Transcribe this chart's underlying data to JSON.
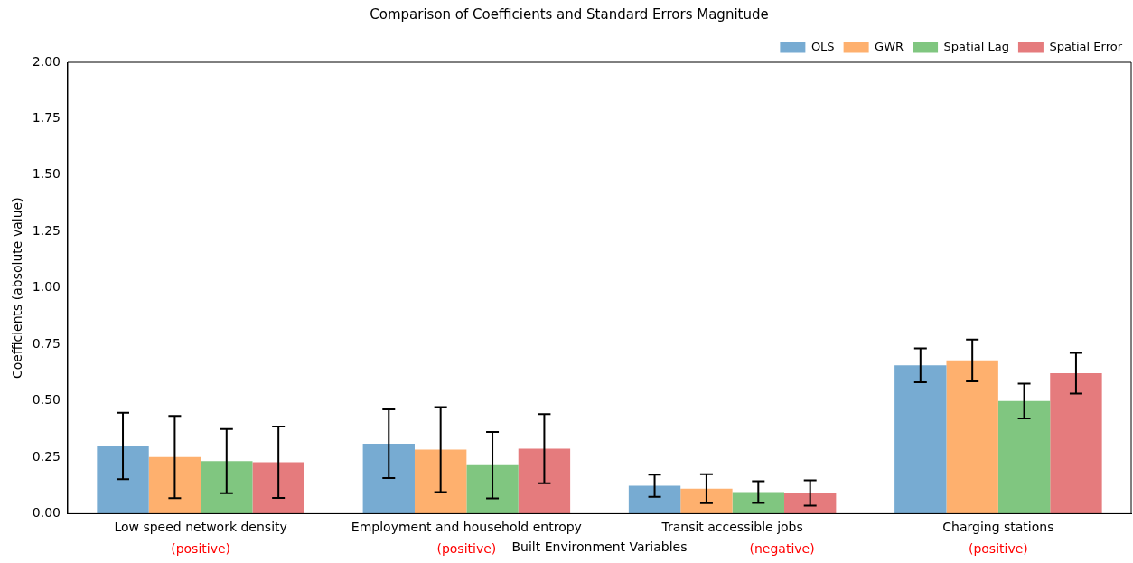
{
  "chart_data": {
    "type": "bar",
    "title": "Comparison of Coefficients and Standard Errors Magnitude",
    "xlabel": "Built Environment Variables",
    "ylabel": "Coefficients (absolute value)",
    "categories": [
      "Low speed network density",
      "Employment and household entropy",
      "Transit accessible jobs",
      "Charging stations"
    ],
    "series": [
      {
        "name": "OLS",
        "color": "#77abd2",
        "values": [
          0.3,
          0.31,
          0.124,
          0.657
        ],
        "errors": [
          0.147,
          0.152,
          0.049,
          0.075
        ]
      },
      {
        "name": "GWR",
        "color": "#feb06e",
        "values": [
          0.251,
          0.284,
          0.111,
          0.679
        ],
        "errors": [
          0.182,
          0.188,
          0.064,
          0.093
        ]
      },
      {
        "name": "Spatial Lag",
        "color": "#80c680",
        "values": [
          0.233,
          0.215,
          0.096,
          0.499
        ],
        "errors": [
          0.142,
          0.147,
          0.048,
          0.077
        ]
      },
      {
        "name": "Spatial Error",
        "color": "#e57b7d",
        "values": [
          0.228,
          0.288,
          0.092,
          0.622
        ],
        "errors": [
          0.158,
          0.153,
          0.056,
          0.09
        ]
      }
    ],
    "ylim": [
      0,
      2
    ],
    "yticks": [
      {
        "value": 0,
        "label": "0.00"
      },
      {
        "value": 0.25,
        "label": "0.25"
      },
      {
        "value": 0.5,
        "label": "0.50"
      },
      {
        "value": 0.75,
        "label": "0.75"
      },
      {
        "value": 1,
        "label": "1.00"
      },
      {
        "value": 1.25,
        "label": "1.25"
      },
      {
        "value": 1.5,
        "label": "1.50"
      },
      {
        "value": 1.75,
        "label": "1.75"
      },
      {
        "value": 2,
        "label": "2.00"
      }
    ],
    "annotations": [
      "(positive)",
      "(positive)",
      "(negative)",
      "(positive)"
    ],
    "grid": false,
    "legend": "top right"
  }
}
